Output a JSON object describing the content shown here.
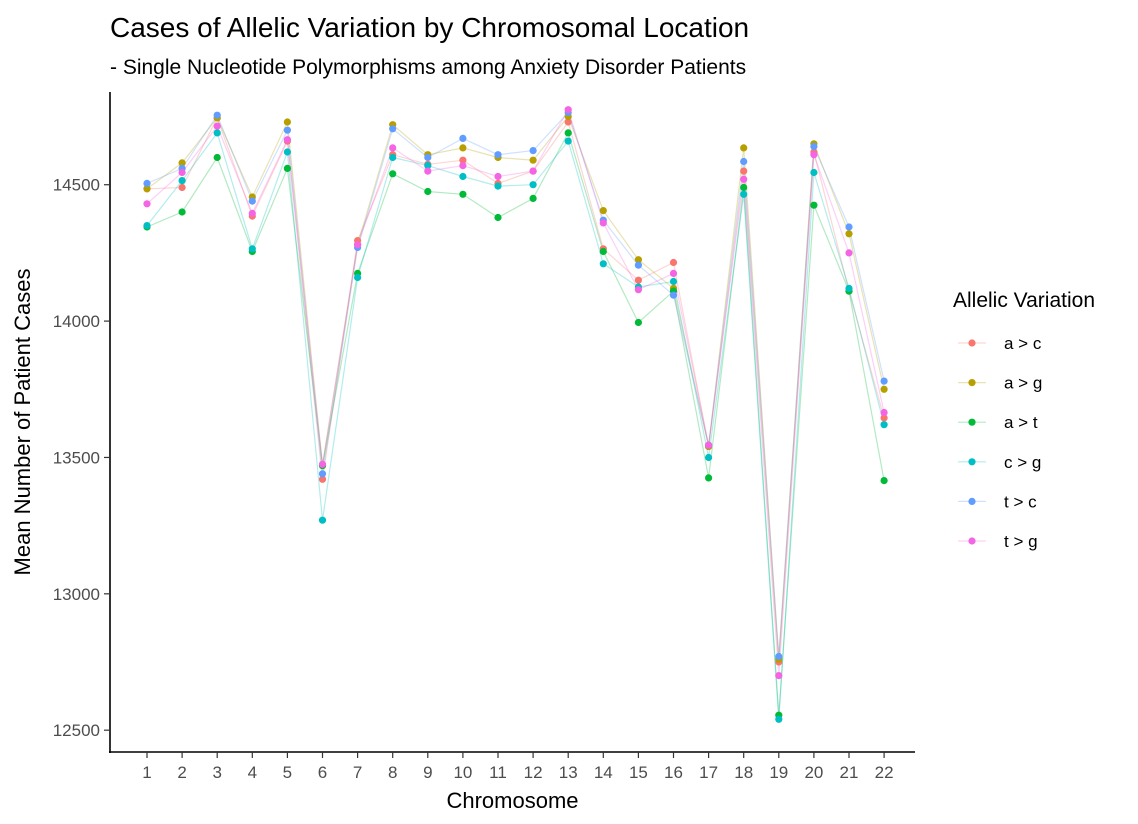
{
  "chart_data": {
    "type": "line",
    "title": "Cases of Allelic Variation by Chromosomal Location",
    "subtitle": "- Single Nucleotide Polymorphisms among Anxiety Disorder Patients",
    "xlabel": "Chromosome",
    "ylabel": "Mean Number of Patient Cases",
    "categories": [
      "1",
      "2",
      "3",
      "4",
      "5",
      "6",
      "7",
      "8",
      "9",
      "10",
      "11",
      "12",
      "13",
      "14",
      "15",
      "16",
      "17",
      "18",
      "19",
      "20",
      "21",
      "22"
    ],
    "ylim": [
      12420,
      14840
    ],
    "yticks": [
      12500,
      13000,
      13500,
      14000,
      14500
    ],
    "grid": false,
    "legend": {
      "title": "Allelic Variation",
      "position": "right"
    },
    "series": [
      {
        "name": "a > c",
        "color": "#F8766D",
        "values": [
          14485,
          14490,
          14745,
          14385,
          14660,
          13420,
          14295,
          14610,
          14575,
          14590,
          14505,
          14550,
          14730,
          14265,
          14150,
          14215,
          13540,
          14550,
          12750,
          14620,
          14110,
          13645
        ]
      },
      {
        "name": "a > g",
        "color": "#B79F00",
        "values": [
          14485,
          14580,
          14745,
          14455,
          14730,
          13470,
          14280,
          14720,
          14610,
          14635,
          14600,
          14590,
          14750,
          14405,
          14225,
          14120,
          13540,
          14635,
          12760,
          14650,
          14320,
          13750
        ]
      },
      {
        "name": "a > t",
        "color": "#00BA38",
        "values": [
          14345,
          14400,
          14600,
          14255,
          14560,
          13470,
          14175,
          14540,
          14475,
          14465,
          14380,
          14450,
          14690,
          14255,
          13995,
          14110,
          13425,
          14490,
          12555,
          14425,
          14110,
          13415
        ]
      },
      {
        "name": "c > g",
        "color": "#00BFC4",
        "values": [
          14350,
          14515,
          14690,
          14265,
          14620,
          13270,
          14160,
          14600,
          14570,
          14530,
          14495,
          14500,
          14660,
          14210,
          14125,
          14145,
          13500,
          14465,
          12540,
          14545,
          14120,
          13620
        ]
      },
      {
        "name": "t > c",
        "color": "#619CFF",
        "values": [
          14505,
          14560,
          14755,
          14440,
          14700,
          13440,
          14270,
          14705,
          14600,
          14670,
          14610,
          14625,
          14765,
          14370,
          14205,
          14095,
          13545,
          14585,
          12770,
          14640,
          14345,
          13780
        ]
      },
      {
        "name": "t > g",
        "color": "#F564E3",
        "values": [
          14430,
          14545,
          14715,
          14395,
          14665,
          13475,
          14280,
          14635,
          14550,
          14570,
          14530,
          14550,
          14775,
          14360,
          14115,
          14175,
          13545,
          14520,
          12700,
          14610,
          14250,
          13665
        ]
      }
    ]
  }
}
